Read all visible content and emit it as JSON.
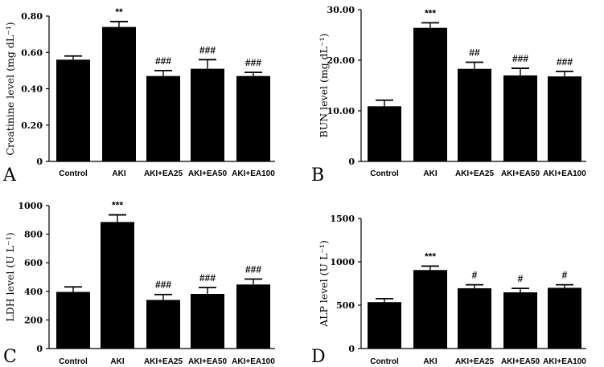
{
  "chart_data": [
    {
      "type": "bar",
      "panel_label": "A",
      "ylabel": "Creatinine level (mg dL⁻¹)",
      "categories": [
        "Control",
        "AKI",
        "AKI+EA25",
        "AKI+EA50",
        "AKI+EA100"
      ],
      "values": [
        0.56,
        0.74,
        0.47,
        0.51,
        0.47
      ],
      "errors": [
        0.02,
        0.03,
        0.03,
        0.05,
        0.02
      ],
      "annotations": [
        "",
        "**",
        "###",
        "###",
        "###"
      ],
      "ylim": [
        0,
        0.8
      ],
      "yticks": [
        "0",
        "0.20",
        "0.40",
        "0.60",
        "0.80"
      ],
      "ytick_values": [
        0,
        0.2,
        0.4,
        0.6,
        0.8
      ],
      "grid": false
    },
    {
      "type": "bar",
      "panel_label": "B",
      "ylabel": "BUN level (mg dL⁻¹)",
      "categories": [
        "Control",
        "AKI",
        "AKI+EA25",
        "AKI+EA50",
        "AKI+EA100"
      ],
      "values": [
        10.9,
        26.4,
        18.3,
        17.0,
        16.8
      ],
      "errors": [
        1.2,
        1.0,
        1.3,
        1.4,
        1.0
      ],
      "annotations": [
        "",
        "***",
        "##",
        "###",
        "###"
      ],
      "ylim": [
        0,
        30
      ],
      "yticks": [
        "0",
        "10.00",
        "20.00",
        "30.00"
      ],
      "ytick_values": [
        0,
        10,
        20,
        30
      ],
      "grid": false
    },
    {
      "type": "bar",
      "panel_label": "C",
      "ylabel": "LDH level (U L⁻¹)",
      "categories": [
        "Control",
        "AKI",
        "AKI+EA25",
        "AKI+EA50",
        "AKI+EA100"
      ],
      "values": [
        396,
        885,
        340,
        382,
        448
      ],
      "errors": [
        35,
        50,
        38,
        45,
        38
      ],
      "annotations": [
        "",
        "***",
        "###",
        "###",
        "###"
      ],
      "ylim": [
        0,
        1000
      ],
      "yticks": [
        "0",
        "200",
        "400",
        "600",
        "800",
        "1000"
      ],
      "ytick_values": [
        0,
        200,
        400,
        600,
        800,
        1000
      ],
      "grid": false
    },
    {
      "type": "bar",
      "panel_label": "D",
      "ylabel": "ALP level (U L⁻¹)",
      "categories": [
        "Control",
        "AKI",
        "AKI+EA25",
        "AKI+EA50",
        "AKI+EA100"
      ],
      "values": [
        535,
        905,
        695,
        648,
        700
      ],
      "errors": [
        40,
        45,
        40,
        45,
        35
      ],
      "annotations": [
        "",
        "***",
        "#",
        "#",
        "#"
      ],
      "ylim": [
        0,
        1500
      ],
      "yticks": [
        "0",
        "500",
        "1000",
        "1500"
      ],
      "ytick_values": [
        0,
        500,
        1000,
        1500
      ],
      "grid": false
    }
  ]
}
